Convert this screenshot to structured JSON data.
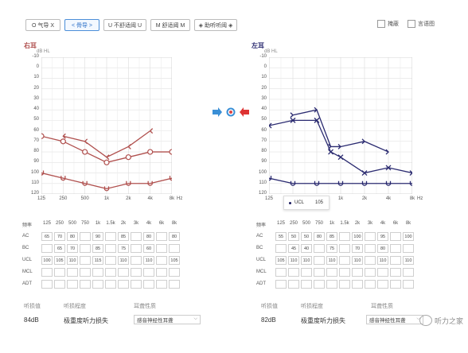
{
  "toolbar": {
    "buttons": [
      {
        "label": "O 气导 X",
        "active": false
      },
      {
        "label": "< 骨导 >",
        "active": true
      },
      {
        "label": "U 不舒适阈 U",
        "active": false
      },
      {
        "label": "M 舒适阈 M",
        "active": false
      },
      {
        "label": "◈ 助听听阈 ◈",
        "active": false
      }
    ],
    "checkbox_mask": "掩蔽",
    "checkbox_speech": "言语图"
  },
  "axis": {
    "unit": "dB HL",
    "yticks": [
      "-10",
      "0",
      "10",
      "20",
      "30",
      "40",
      "50",
      "60",
      "70",
      "80",
      "90",
      "100",
      "110",
      "120"
    ],
    "xticks": [
      "125",
      "250",
      "500",
      "1k",
      "2k",
      "4k",
      "8k"
    ],
    "hz": "Hz"
  },
  "right": {
    "title": "右耳",
    "color": "#b0504e",
    "chart_data": {
      "type": "line",
      "x": [
        "125",
        "250",
        "500",
        "1k",
        "2k",
        "4k",
        "8k"
      ],
      "ylim": [
        -10,
        120
      ],
      "series": [
        {
          "marker": "O",
          "values": [
            [
              125,
              65
            ],
            [
              250,
              70
            ],
            [
              500,
              80
            ],
            [
              1000,
              90
            ],
            [
              2000,
              85
            ],
            [
              4000,
              80
            ],
            [
              8000,
              80
            ]
          ]
        },
        {
          "marker": "<",
          "values": [
            [
              250,
              65
            ],
            [
              500,
              70
            ],
            [
              1000,
              85
            ],
            [
              2000,
              75
            ],
            [
              4000,
              60
            ]
          ]
        },
        {
          "marker": "U",
          "values": [
            [
              125,
              100
            ],
            [
              250,
              105
            ],
            [
              500,
              110
            ],
            [
              1000,
              115
            ],
            [
              2000,
              110
            ],
            [
              4000,
              110
            ],
            [
              8000,
              105
            ]
          ]
        }
      ]
    },
    "table": {
      "freq": [
        "125",
        "250",
        "500",
        "750",
        "1k",
        "1.5k",
        "2k",
        "3k",
        "4k",
        "6k",
        "8k"
      ],
      "AC": [
        "65",
        "70",
        "80",
        "",
        "90",
        "",
        "85",
        "",
        "80",
        "",
        "80"
      ],
      "BC": [
        "",
        "65",
        "70",
        "",
        "85",
        "",
        "75",
        "",
        "60",
        "",
        ""
      ],
      "UCL": [
        "100",
        "105",
        "110",
        "",
        "115",
        "",
        "110",
        "",
        "110",
        "",
        "105"
      ],
      "MCL": [
        "",
        "",
        "",
        "",
        "",
        "",
        "",
        "",
        "",
        "",
        ""
      ],
      "ADT": [
        "",
        "",
        "",
        "",
        "",
        "",
        "",
        "",
        "",
        "",
        ""
      ]
    },
    "pta_label": "听损值",
    "pta_value": "84dB",
    "degree_label": "听损程度",
    "degree_value": "极重度听力损失",
    "nature_label": "耳聋性质",
    "nature_value": "感音神经性耳聋"
  },
  "left": {
    "title": "左耳",
    "color": "#2a2a70",
    "chart_data": {
      "type": "line",
      "x": [
        "125",
        "250",
        "500",
        "1k",
        "2k",
        "4k",
        "8k"
      ],
      "ylim": [
        -10,
        120
      ],
      "series": [
        {
          "marker": "X",
          "values": [
            [
              125,
              55
            ],
            [
              250,
              50
            ],
            [
              500,
              50
            ],
            [
              750,
              80
            ],
            [
              1000,
              85
            ],
            [
              2000,
              100
            ],
            [
              4000,
              95
            ],
            [
              8000,
              100
            ]
          ]
        },
        {
          "marker": ">",
          "values": [
            [
              250,
              45
            ],
            [
              500,
              40
            ],
            [
              750,
              75
            ],
            [
              1000,
              75
            ],
            [
              2000,
              70
            ],
            [
              4000,
              80
            ]
          ]
        },
        {
          "marker": "U",
          "values": [
            [
              125,
              105
            ],
            [
              250,
              110
            ],
            [
              500,
              110
            ],
            [
              1000,
              110
            ],
            [
              2000,
              110
            ],
            [
              4000,
              110
            ],
            [
              8000,
              110
            ]
          ]
        }
      ]
    },
    "table": {
      "freq": [
        "125",
        "250",
        "500",
        "750",
        "1k",
        "1.5k",
        "2k",
        "3k",
        "4k",
        "6k",
        "8k"
      ],
      "AC": [
        "55",
        "50",
        "50",
        "80",
        "85",
        "",
        "100",
        "",
        "95",
        "",
        "100"
      ],
      "BC": [
        "",
        "45",
        "40",
        "",
        "75",
        "",
        "70",
        "",
        "80",
        "",
        ""
      ],
      "UCL": [
        "105",
        "110",
        "110",
        "",
        "110",
        "",
        "110",
        "",
        "110",
        "",
        "110"
      ],
      "MCL": [
        "",
        "",
        "",
        "",
        "",
        "",
        "",
        "",
        "",
        "",
        ""
      ],
      "ADT": [
        "",
        "",
        "",
        "",
        "",
        "",
        "",
        "",
        "",
        "",
        ""
      ]
    },
    "tooltip_label": "UCL",
    "tooltip_value": "105",
    "pta_label": "听损值",
    "pta_value": "82dB",
    "degree_label": "听损程度",
    "degree_value": "极重度听力损失",
    "nature_label": "耳聋性质",
    "nature_value": "感音神经性耳聋"
  },
  "table_row_labels": {
    "freq": "频率",
    "AC": "AC",
    "BC": "BC",
    "UCL": "UCL",
    "MCL": "MCL",
    "ADT": "ADT"
  },
  "watermark": "听力之家"
}
